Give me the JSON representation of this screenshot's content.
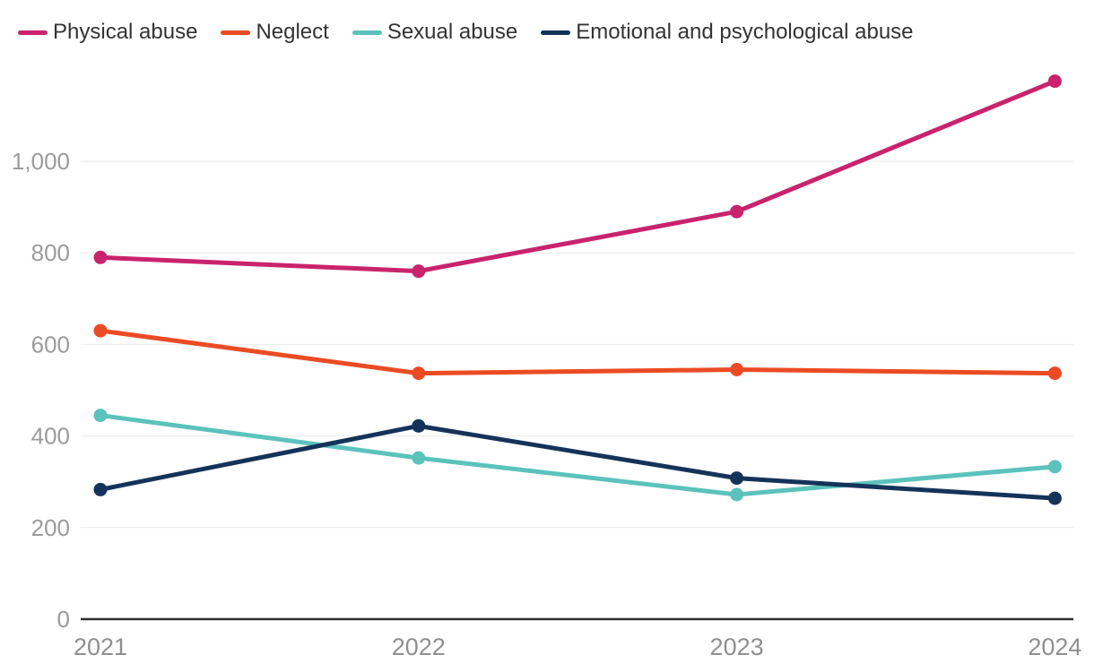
{
  "chart_data": {
    "type": "line",
    "x": [
      "2021",
      "2022",
      "2023",
      "2024"
    ],
    "series": [
      {
        "name": "Physical abuse",
        "color": "#C9236D",
        "values": [
          790,
          760,
          890,
          1175
        ]
      },
      {
        "name": "Neglect",
        "color": "#EB4B24",
        "values": [
          630,
          537,
          545,
          537
        ]
      },
      {
        "name": "Sexual abuse",
        "color": "#5BC2BC",
        "values": [
          445,
          352,
          272,
          333
        ]
      },
      {
        "name": "Emotional and psychological abuse",
        "color": "#14335A",
        "values": [
          283,
          422,
          308,
          264
        ]
      }
    ],
    "y_ticks": [
      {
        "value": 0,
        "label": "0"
      },
      {
        "value": 200,
        "label": "200"
      },
      {
        "value": 400,
        "label": "400"
      },
      {
        "value": 600,
        "label": "600"
      },
      {
        "value": 800,
        "label": "800"
      },
      {
        "value": 1000,
        "label": "1,000"
      }
    ],
    "ylim": [
      0,
      1200
    ],
    "grid": true,
    "legend_position": "top-left"
  },
  "colors": {
    "background": "#FFFFFF",
    "axis_line": "#2E2E2E",
    "gridline": "#E9E9E9",
    "y_tick_label": "#9B9B9B",
    "x_tick_label": "#8F8F8F",
    "legend_text": "#333333"
  }
}
